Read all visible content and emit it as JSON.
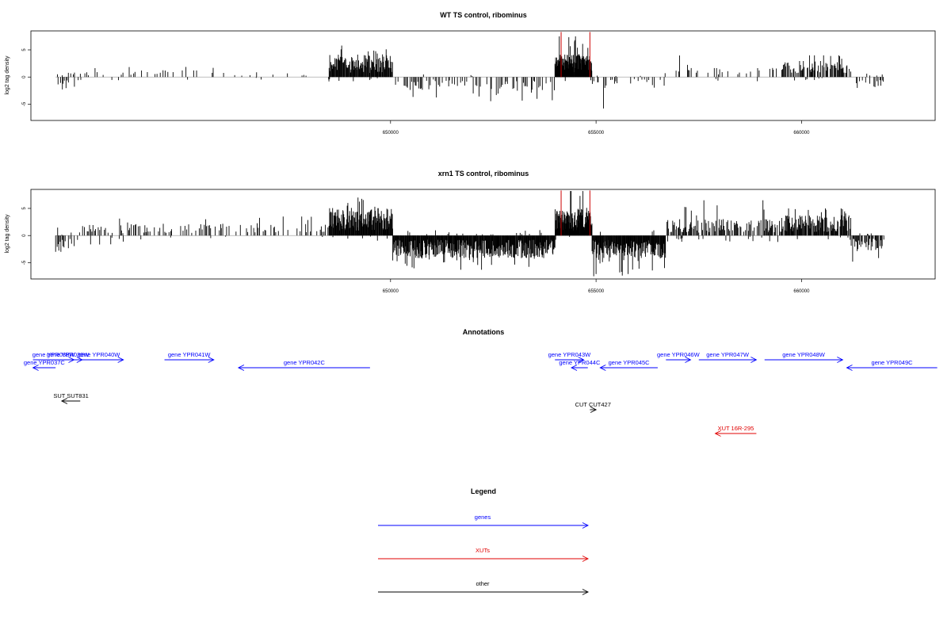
{
  "chart_data": [
    {
      "type": "bar",
      "title": "WT TS control, ribominus",
      "ylabel": "log2 tag density",
      "xlabel": "",
      "xlim": [
        641250,
        663250
      ],
      "ylim": [
        -8,
        8.5
      ],
      "x_ticks": [
        650000,
        655000,
        660000
      ],
      "x_tick_labels": [
        "650000",
        "655000",
        "660000"
      ],
      "y_ticks": [
        -5,
        0,
        5
      ],
      "y_tick_labels": [
        "-5",
        "0",
        "5"
      ],
      "grid": false,
      "bar_color": "#000000",
      "highlight_color": "#cc0000",
      "highlights": [
        {
          "x": 654150,
          "value": 8.3
        },
        {
          "x": 654850,
          "value": 8.3
        }
      ],
      "density_segments": [
        {
          "start": 641850,
          "end": 642400,
          "pos_mean": 0.5,
          "pos_max": 1.5,
          "neg_mean": -1.2,
          "neg_max": -2.5,
          "pos_prob": 0.15,
          "neg_prob": 0.5,
          "step": 30
        },
        {
          "start": 642400,
          "end": 643500,
          "pos_mean": 0.6,
          "pos_max": 3,
          "neg_mean": -0.5,
          "neg_max": -1.5,
          "pos_prob": 0.25,
          "neg_prob": 0.08,
          "step": 40
        },
        {
          "start": 643500,
          "end": 644800,
          "pos_mean": 0.8,
          "pos_max": 3,
          "neg_mean": -0.3,
          "neg_max": -1,
          "pos_prob": 0.3,
          "neg_prob": 0.04,
          "step": 40
        },
        {
          "start": 644800,
          "end": 646000,
          "pos_mean": 1.2,
          "pos_max": 3,
          "neg_mean": -0.3,
          "neg_max": -1,
          "pos_prob": 0.3,
          "neg_prob": 0.04,
          "step": 40
        },
        {
          "start": 646000,
          "end": 648500,
          "pos_mean": 0.6,
          "pos_max": 2.5,
          "neg_mean": -0.3,
          "neg_max": -1,
          "pos_prob": 0.2,
          "neg_prob": 0.03,
          "step": 40
        },
        {
          "start": 648500,
          "end": 650050,
          "pos_mean": 2.5,
          "pos_max": 5.8,
          "neg_mean": -0.5,
          "neg_max": -1.5,
          "pos_prob": 1.0,
          "neg_prob": 0.04,
          "step": 14
        },
        {
          "start": 650050,
          "end": 654000,
          "pos_mean": 0.3,
          "pos_max": 1,
          "neg_mean": -1.5,
          "neg_max": -5,
          "pos_prob": 0.03,
          "neg_prob": 0.6,
          "step": 30
        },
        {
          "start": 654000,
          "end": 654900,
          "pos_mean": 2.5,
          "pos_max": 7.5,
          "neg_mean": -0.5,
          "neg_max": -1.5,
          "pos_prob": 1.0,
          "neg_prob": 0.02,
          "step": 8
        },
        {
          "start": 654900,
          "end": 656700,
          "pos_mean": 0.5,
          "pos_max": 2,
          "neg_mean": -1.2,
          "neg_max": -5.8,
          "pos_prob": 0.05,
          "neg_prob": 0.5,
          "step": 30
        },
        {
          "start": 656700,
          "end": 659500,
          "pos_mean": 1.0,
          "pos_max": 4.5,
          "neg_mean": -0.5,
          "neg_max": -2,
          "pos_prob": 0.3,
          "neg_prob": 0.05,
          "step": 30
        },
        {
          "start": 659500,
          "end": 661200,
          "pos_mean": 1.8,
          "pos_max": 4,
          "neg_mean": -0.4,
          "neg_max": -1,
          "pos_prob": 0.75,
          "neg_prob": 0.05,
          "step": 18
        },
        {
          "start": 661200,
          "end": 662000,
          "pos_mean": 0.3,
          "pos_max": 1,
          "neg_mean": -1.3,
          "neg_max": -4.5,
          "pos_prob": 0.03,
          "neg_prob": 0.5,
          "step": 25
        }
      ]
    },
    {
      "type": "bar",
      "title": "xrn1 TS control, ribominus",
      "ylabel": "log2 tag density",
      "xlabel": "",
      "xlim": [
        641250,
        663250
      ],
      "ylim": [
        -8,
        8.5
      ],
      "x_ticks": [
        650000,
        655000,
        660000
      ],
      "x_tick_labels": [
        "650000",
        "655000",
        "660000"
      ],
      "y_ticks": [
        -5,
        0,
        5
      ],
      "y_tick_labels": [
        "-5",
        "0",
        "5"
      ],
      "grid": false,
      "bar_color": "#000000",
      "highlight_color": "#cc0000",
      "highlights": [
        {
          "x": 654150,
          "value": 8.3
        },
        {
          "x": 654850,
          "value": 8.3
        }
      ],
      "density_segments": [
        {
          "start": 641850,
          "end": 642400,
          "pos_mean": 0.5,
          "pos_max": 1.5,
          "neg_mean": -1.5,
          "neg_max": -3,
          "pos_prob": 0.15,
          "neg_prob": 0.6,
          "step": 25
        },
        {
          "start": 642400,
          "end": 643500,
          "pos_mean": 1.2,
          "pos_max": 4.5,
          "neg_mean": -1.0,
          "neg_max": -3.5,
          "pos_prob": 0.4,
          "neg_prob": 0.2,
          "step": 30
        },
        {
          "start": 643500,
          "end": 644800,
          "pos_mean": 1.3,
          "pos_max": 3.5,
          "neg_mean": -0.5,
          "neg_max": -1.5,
          "pos_prob": 0.5,
          "neg_prob": 0.06,
          "step": 30
        },
        {
          "start": 644800,
          "end": 646000,
          "pos_mean": 1.3,
          "pos_max": 3,
          "neg_mean": -0.3,
          "neg_max": -1,
          "pos_prob": 0.5,
          "neg_prob": 0.04,
          "step": 30
        },
        {
          "start": 646000,
          "end": 648500,
          "pos_mean": 1.3,
          "pos_max": 3.5,
          "neg_mean": -0.4,
          "neg_max": -1,
          "pos_prob": 0.5,
          "neg_prob": 0.04,
          "step": 30
        },
        {
          "start": 648500,
          "end": 650050,
          "pos_mean": 3.0,
          "pos_max": 7,
          "neg_mean": -0.6,
          "neg_max": -1.5,
          "pos_prob": 1.0,
          "neg_prob": 0.05,
          "step": 12
        },
        {
          "start": 650050,
          "end": 654000,
          "pos_mean": 0.3,
          "pos_max": 1,
          "neg_mean": -2.5,
          "neg_max": -6.3,
          "pos_prob": 0.03,
          "neg_prob": 1.0,
          "step": 12
        },
        {
          "start": 654000,
          "end": 654900,
          "pos_mean": 3.0,
          "pos_max": 8.2,
          "neg_mean": -0.5,
          "neg_max": -1.5,
          "pos_prob": 1.0,
          "neg_prob": 0.03,
          "step": 8
        },
        {
          "start": 654900,
          "end": 656700,
          "pos_mean": 0.5,
          "pos_max": 2,
          "neg_mean": -2.5,
          "neg_max": -7.5,
          "pos_prob": 0.05,
          "neg_prob": 1.0,
          "step": 12
        },
        {
          "start": 656700,
          "end": 659500,
          "pos_mean": 1.8,
          "pos_max": 6.5,
          "neg_mean": -0.7,
          "neg_max": -3,
          "pos_prob": 0.7,
          "neg_prob": 0.1,
          "step": 18
        },
        {
          "start": 659500,
          "end": 661200,
          "pos_mean": 2.2,
          "pos_max": 5,
          "neg_mean": -0.5,
          "neg_max": -1.5,
          "pos_prob": 0.9,
          "neg_prob": 0.06,
          "step": 14
        },
        {
          "start": 661200,
          "end": 662000,
          "pos_mean": 0.3,
          "pos_max": 1,
          "neg_mean": -1.8,
          "neg_max": -6,
          "pos_prob": 0.03,
          "neg_prob": 0.8,
          "step": 18
        }
      ]
    },
    {
      "type": "annotation_track",
      "title": "Annotations",
      "xlim": [
        641250,
        663250
      ],
      "features": [
        {
          "label": "gene YPR037C",
          "start": 641300,
          "end": 641850,
          "strand": "-",
          "color": "#0000ff",
          "row": 2
        },
        {
          "label": "gene YPR038W",
          "start": 641300,
          "end": 642300,
          "strand": "+",
          "color": "#0000ff",
          "row": 1
        },
        {
          "label": "gene YPR039W",
          "start": 641800,
          "end": 642500,
          "strand": "+",
          "color": "#0000ff",
          "row": 1
        },
        {
          "label": "gene YPR040W",
          "start": 642300,
          "end": 643500,
          "strand": "+",
          "color": "#0000ff",
          "row": 1
        },
        {
          "label": "gene YPR041W",
          "start": 644500,
          "end": 645700,
          "strand": "+",
          "color": "#0000ff",
          "row": 1
        },
        {
          "label": "gene YPR042C",
          "start": 646300,
          "end": 649500,
          "strand": "-",
          "color": "#0000ff",
          "row": 2
        },
        {
          "label": "gene YPR043W",
          "start": 654000,
          "end": 654700,
          "strand": "+",
          "color": "#0000ff",
          "row": 1
        },
        {
          "label": "gene YPR044C",
          "start": 654400,
          "end": 654800,
          "strand": "-",
          "color": "#0000ff",
          "row": 2
        },
        {
          "label": "gene YPR045C",
          "start": 655100,
          "end": 656500,
          "strand": "-",
          "color": "#0000ff",
          "row": 2
        },
        {
          "label": "gene YPR046W",
          "start": 656700,
          "end": 657300,
          "strand": "+",
          "color": "#0000ff",
          "row": 1
        },
        {
          "label": "gene YPR047W",
          "start": 657500,
          "end": 658900,
          "strand": "+",
          "color": "#0000ff",
          "row": 1
        },
        {
          "label": "gene YPR048W",
          "start": 659100,
          "end": 661000,
          "strand": "+",
          "color": "#0000ff",
          "row": 1
        },
        {
          "label": "gene YPR049C",
          "start": 661100,
          "end": 663300,
          "strand": "-",
          "color": "#0000ff",
          "row": 2
        },
        {
          "label": "SUT SUT831",
          "start": 642000,
          "end": 642450,
          "strand": "-",
          "color": "#000000",
          "row": 3
        },
        {
          "label": "CUT CUT427",
          "start": 654850,
          "end": 655000,
          "strand": "+",
          "color": "#000000",
          "row": 4
        },
        {
          "label": "XUT 16R-295",
          "start": 657900,
          "end": 658900,
          "strand": "-",
          "color": "#e00000",
          "row": 5
        }
      ]
    }
  ],
  "legend": {
    "title": "Legend",
    "items": [
      {
        "label": "genes",
        "color": "#0000ff"
      },
      {
        "label": "XUTs",
        "color": "#e00000"
      },
      {
        "label": "other",
        "color": "#000000"
      }
    ]
  }
}
